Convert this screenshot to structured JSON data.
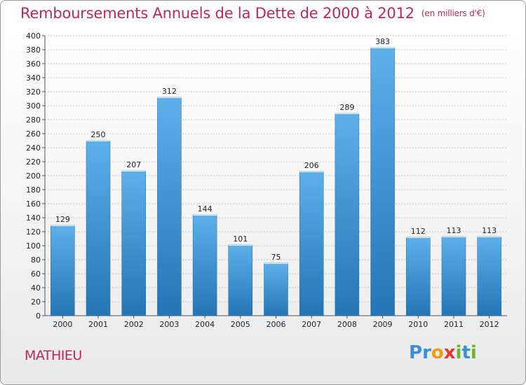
{
  "header": {
    "title": "Remboursements Annuels de la Dette de 2000 à 2012",
    "subtitle": "(en milliers d'€)"
  },
  "footer": {
    "commune": "MATHIEU",
    "logo_letters": [
      {
        "char": "P",
        "color": "#3a8fd6"
      },
      {
        "char": "r",
        "color": "#3a8fd6"
      },
      {
        "char": "o",
        "color": "#f29a16"
      },
      {
        "char": "x",
        "color": "#e8352f"
      },
      {
        "char": "i",
        "color": "#6cb52d"
      },
      {
        "char": "t",
        "color": "#3a8fd6"
      },
      {
        "char": "i",
        "color": "#6cb52d"
      }
    ]
  },
  "colors": {
    "title": "#c0265e",
    "bar_top": "#5db0ea",
    "bar_bottom": "#2475b5",
    "grid": "#c8c8c8",
    "axis": "#555555",
    "text": "#222222"
  },
  "chart_data": {
    "type": "bar",
    "categories": [
      "2000",
      "2001",
      "2002",
      "2003",
      "2004",
      "2005",
      "2006",
      "2007",
      "2008",
      "2009",
      "2010",
      "2011",
      "2012"
    ],
    "values": [
      129,
      250,
      207,
      312,
      144,
      101,
      75,
      206,
      289,
      383,
      112,
      113,
      113
    ],
    "data_labels": [
      "129",
      "250",
      "207",
      "312",
      "144",
      "101",
      "75",
      "206",
      "289",
      "383",
      "112",
      "113",
      "113"
    ],
    "yticks": [
      "0",
      "20",
      "40",
      "60",
      "80",
      "100",
      "120",
      "140",
      "160",
      "180",
      "200",
      "220",
      "240",
      "260",
      "280",
      "300",
      "320",
      "340",
      "360",
      "380",
      "400"
    ],
    "ylim": [
      0,
      400
    ],
    "ystep": 20,
    "grid": true,
    "xlabel": "",
    "ylabel": ""
  }
}
